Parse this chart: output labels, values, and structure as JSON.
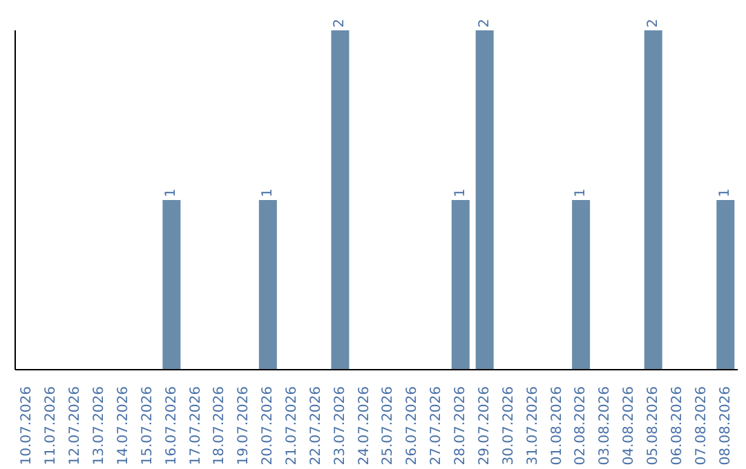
{
  "chart_data": {
    "type": "bar",
    "categories": [
      "10.07.2026",
      "11.07.2026",
      "12.07.2026",
      "13.07.2026",
      "14.07.2026",
      "15.07.2026",
      "16.07.2026",
      "17.07.2026",
      "18.07.2026",
      "19.07.2026",
      "20.07.2026",
      "21.07.2026",
      "22.07.2026",
      "23.07.2026",
      "24.07.2026",
      "25.07.2026",
      "26.07.2026",
      "27.07.2026",
      "28.07.2026",
      "29.07.2026",
      "30.07.2026",
      "31.07.2026",
      "01.08.2026",
      "02.08.2026",
      "03.08.2026",
      "04.08.2026",
      "05.08.2026",
      "06.08.2026",
      "07.08.2026",
      "08.08.2026"
    ],
    "values": [
      0,
      0,
      0,
      0,
      0,
      0,
      1,
      0,
      0,
      0,
      1,
      0,
      0,
      2,
      0,
      0,
      0,
      0,
      1,
      2,
      0,
      0,
      0,
      1,
      0,
      0,
      2,
      0,
      0,
      1
    ],
    "value_labels": [
      null,
      null,
      null,
      null,
      null,
      null,
      "1",
      null,
      null,
      null,
      "1",
      null,
      null,
      "2",
      null,
      null,
      null,
      null,
      "1",
      "2",
      null,
      null,
      null,
      "1",
      null,
      null,
      "2",
      null,
      null,
      "1"
    ],
    "color": "#6a8cab",
    "ylim": [
      0,
      2
    ],
    "grid": false,
    "legend": false
  }
}
